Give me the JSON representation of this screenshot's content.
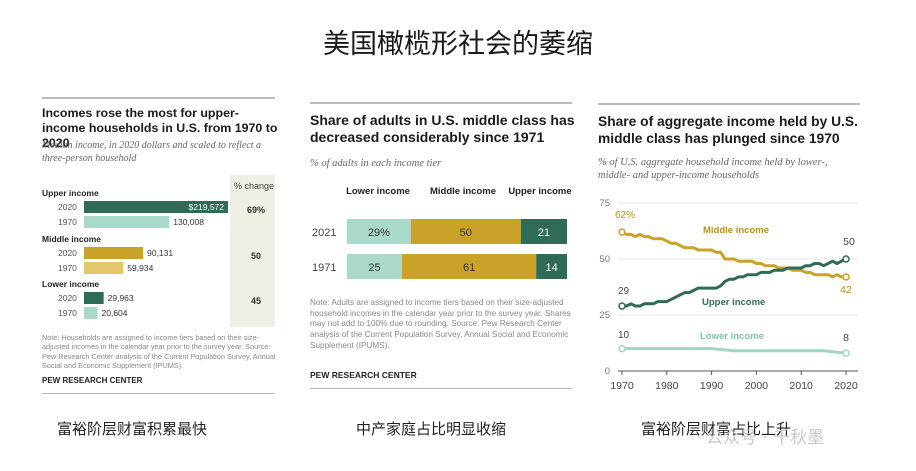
{
  "page_title": "美国橄榄形社会的萎缩",
  "panels": {
    "left": {
      "heading": "Incomes rose the most for upper-income households in U.S. from 1970 to 2020",
      "subtitle": "Median income, in 2020 dollars and scaled to reflect a three-person household",
      "pct_header": "% change",
      "note": "Note: Households are assigned to income tiers based on their size-adjusted incomes in the calendar year prior to the survey year. Source: Pew Research Center analysis of the Current Population Survey, Annual Social and Economic Supplement (IPUMS).",
      "brand": "PEW RESEARCH CENTER",
      "caption": "富裕阶层财富积累最快"
    },
    "middle": {
      "heading": "Share of adults in U.S. middle class has decreased considerably since 1971",
      "subtitle": "% of adults in each income tier",
      "note": "Note: Adults are assigned to income tiers based on their size-adjusted household incomes in the calendar year prior to the survey year. Shares may not add to 100% due to rounding. Source: Pew Research Center analysis of the Current Population Survey, Annual Social and Economic Supplement (IPUMS).",
      "brand": "PEW RESEARCH CENTER",
      "caption": "中产家庭占比明显收缩"
    },
    "right": {
      "heading": "Share of aggregate income held by U.S. middle class has plunged since 1970",
      "subtitle": "% of U.S. aggregate household income held by lower-, middle- and upper-income households",
      "caption": "富裕阶层财富占比上升"
    }
  },
  "watermark": "公众号 · 千秋墨",
  "colors": {
    "dark_green": "#2f6b55",
    "light_green": "#a9d9cb",
    "gold": "#c9a227",
    "light_gold": "#e3c76a",
    "lower_line": "#9fd6c6",
    "pct_bg": "#f0efe6"
  },
  "chart_data": [
    {
      "type": "bar",
      "title": "Incomes rose the most for upper-income households in U.S. from 1970 to 2020",
      "groups": [
        {
          "name": "Upper income",
          "pct_change": "69%",
          "rows": [
            {
              "year": "2020",
              "value": 219572,
              "label": "$219,572"
            },
            {
              "year": "1970",
              "value": 130008,
              "label": "130,008"
            }
          ]
        },
        {
          "name": "Middle income",
          "pct_change": "50",
          "rows": [
            {
              "year": "2020",
              "value": 90131,
              "label": "90,131"
            },
            {
              "year": "1970",
              "value": 59934,
              "label": "59,934"
            }
          ]
        },
        {
          "name": "Lower income",
          "pct_change": "45",
          "rows": [
            {
              "year": "2020",
              "value": 29963,
              "label": "29,963"
            },
            {
              "year": "1970",
              "value": 20604,
              "label": "20,604"
            }
          ]
        }
      ]
    },
    {
      "type": "bar",
      "stacked": true,
      "title": "Share of adults in U.S. middle class has decreased considerably since 1971",
      "series_headers": [
        "Lower income",
        "Middle income",
        "Upper income"
      ],
      "rows": [
        {
          "year": "2021",
          "values": [
            29,
            50,
            21
          ],
          "labels": [
            "29%",
            "50",
            "21"
          ]
        },
        {
          "year": "1971",
          "values": [
            25,
            61,
            14
          ],
          "labels": [
            "25",
            "61",
            "14"
          ]
        }
      ]
    },
    {
      "type": "line",
      "title": "Share of aggregate income held by U.S. middle class has plunged since 1970",
      "x_ticks": [
        "1970",
        "1980",
        "1990",
        "2000",
        "2010",
        "2020"
      ],
      "y_ticks": [
        "0",
        "25",
        "50",
        "75"
      ],
      "xlim": [
        1970,
        2020
      ],
      "ylim": [
        0,
        75
      ],
      "series": [
        {
          "name": "Middle income",
          "start_label": "62%",
          "end_label": "42",
          "points": [
            [
              1970,
              62
            ],
            [
              1971,
              61
            ],
            [
              1972,
              61
            ],
            [
              1973,
              60
            ],
            [
              1974,
              61
            ],
            [
              1975,
              60
            ],
            [
              1976,
              60
            ],
            [
              1977,
              59
            ],
            [
              1978,
              59
            ],
            [
              1979,
              59
            ],
            [
              1980,
              58
            ],
            [
              1981,
              57
            ],
            [
              1982,
              57
            ],
            [
              1983,
              56
            ],
            [
              1984,
              55
            ],
            [
              1985,
              55
            ],
            [
              1986,
              55
            ],
            [
              1987,
              54
            ],
            [
              1988,
              54
            ],
            [
              1989,
              54
            ],
            [
              1990,
              54
            ],
            [
              1991,
              53
            ],
            [
              1992,
              53
            ],
            [
              1993,
              50
            ],
            [
              1994,
              50
            ],
            [
              1995,
              50
            ],
            [
              1996,
              49
            ],
            [
              1997,
              49
            ],
            [
              1998,
              49
            ],
            [
              1999,
              49
            ],
            [
              2000,
              48
            ],
            [
              2001,
              48
            ],
            [
              2002,
              47
            ],
            [
              2003,
              47
            ],
            [
              2004,
              47
            ],
            [
              2005,
              46
            ],
            [
              2006,
              46
            ],
            [
              2007,
              46
            ],
            [
              2008,
              45
            ],
            [
              2009,
              45
            ],
            [
              2010,
              45
            ],
            [
              2011,
              44
            ],
            [
              2012,
              44
            ],
            [
              2013,
              43
            ],
            [
              2014,
              43
            ],
            [
              2015,
              43
            ],
            [
              2016,
              43
            ],
            [
              2017,
              42
            ],
            [
              2018,
              43
            ],
            [
              2019,
              42
            ],
            [
              2020,
              42
            ]
          ]
        },
        {
          "name": "Upper income",
          "start_label": "29",
          "end_label": "50",
          "points": [
            [
              1970,
              29
            ],
            [
              1971,
              29
            ],
            [
              1972,
              30
            ],
            [
              1973,
              29
            ],
            [
              1974,
              29
            ],
            [
              1975,
              30
            ],
            [
              1976,
              30
            ],
            [
              1977,
              30
            ],
            [
              1978,
              31
            ],
            [
              1979,
              31
            ],
            [
              1980,
              31
            ],
            [
              1981,
              32
            ],
            [
              1982,
              33
            ],
            [
              1983,
              34
            ],
            [
              1984,
              35
            ],
            [
              1985,
              35
            ],
            [
              1986,
              36
            ],
            [
              1987,
              37
            ],
            [
              1988,
              37
            ],
            [
              1989,
              37
            ],
            [
              1990,
              37
            ],
            [
              1991,
              37
            ],
            [
              1992,
              38
            ],
            [
              1993,
              40
            ],
            [
              1994,
              41
            ],
            [
              1995,
              41
            ],
            [
              1996,
              42
            ],
            [
              1997,
              42
            ],
            [
              1998,
              43
            ],
            [
              1999,
              43
            ],
            [
              2000,
              43
            ],
            [
              2001,
              44
            ],
            [
              2002,
              44
            ],
            [
              2003,
              44
            ],
            [
              2004,
              45
            ],
            [
              2005,
              45
            ],
            [
              2006,
              45
            ],
            [
              2007,
              46
            ],
            [
              2008,
              46
            ],
            [
              2009,
              46
            ],
            [
              2010,
              46
            ],
            [
              2011,
              47
            ],
            [
              2012,
              47
            ],
            [
              2013,
              48
            ],
            [
              2014,
              48
            ],
            [
              2015,
              47
            ],
            [
              2016,
              48
            ],
            [
              2017,
              49
            ],
            [
              2018,
              48
            ],
            [
              2019,
              49
            ],
            [
              2020,
              50
            ]
          ]
        },
        {
          "name": "Lower income",
          "start_label": "10",
          "end_label": "8",
          "points": [
            [
              1970,
              10
            ],
            [
              1975,
              10
            ],
            [
              1980,
              10
            ],
            [
              1985,
              10
            ],
            [
              1990,
              10
            ],
            [
              1995,
              9
            ],
            [
              2000,
              9
            ],
            [
              2005,
              9
            ],
            [
              2010,
              9
            ],
            [
              2015,
              9
            ],
            [
              2020,
              8
            ]
          ]
        }
      ]
    }
  ]
}
